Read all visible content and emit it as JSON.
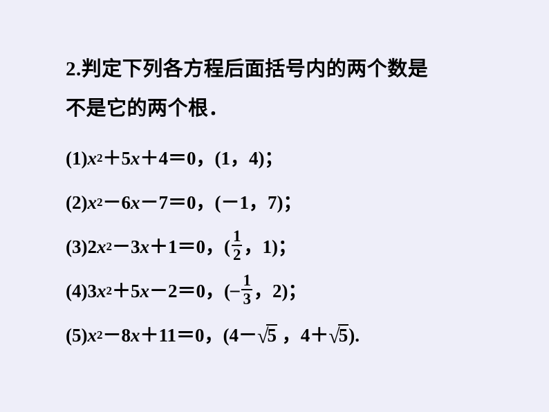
{
  "background_color": "#eeeef9",
  "text_color": "#000000",
  "intro": {
    "number": "2.",
    "line1_cn": "判定下列各方程后面括号内的两个数是",
    "line2_cn": "不是它的两个根．"
  },
  "items": [
    {
      "label": "(1)",
      "coef_a": "",
      "term1": "x",
      "exp1": "2",
      "op1": "＋",
      "coef_b": "5",
      "term2": "x",
      "op2": "＋",
      "coef_c": "4",
      "eq": "＝0",
      "roots_prefix": "(1",
      "roots_sep": "，",
      "roots_suffix": "4)",
      "semi": "；",
      "has_frac": false,
      "has_sqrt": false
    },
    {
      "label": "(2)",
      "coef_a": "",
      "term1": "x",
      "exp1": "2",
      "op1": "－",
      "coef_b": "6",
      "term2": "x",
      "op2": "－",
      "coef_c": "7",
      "eq": "＝0",
      "roots_prefix": "(－1",
      "roots_sep": "，",
      "roots_suffix": "7)",
      "semi": "；",
      "has_frac": false,
      "has_sqrt": false
    },
    {
      "label": "(3)",
      "coef_a": "2",
      "term1": "x",
      "exp1": "2",
      "op1": "－",
      "coef_b": "3",
      "term2": "x",
      "op2": "＋",
      "coef_c": "1",
      "eq": "＝0",
      "roots_prefix": "( ",
      "frac_neg": "",
      "frac_num": "1",
      "frac_den": "2",
      "roots_sep": "，",
      "roots_suffix": "1)",
      "semi": "；",
      "has_frac": true,
      "has_sqrt": false
    },
    {
      "label": "(4)",
      "coef_a": "3",
      "term1": "x",
      "exp1": "2",
      "op1": "＋",
      "coef_b": "5",
      "term2": "x",
      "op2": "－",
      "coef_c": "2",
      "eq": "＝0",
      "roots_prefix": "( ",
      "frac_neg": "–",
      "frac_num": "1",
      "frac_den": "3",
      "roots_sep": "，",
      "roots_suffix": "2)",
      "semi": "；",
      "has_frac": true,
      "has_sqrt": false
    },
    {
      "label": "(5)",
      "coef_a": "",
      "term1": "x",
      "exp1": "2",
      "op1": "－",
      "coef_b": "8",
      "term2": "x",
      "op2": "＋",
      "coef_c": "11",
      "eq": "＝0",
      "roots_prefix": "(4－",
      "sqrt_arg1": "5",
      "roots_sep": "，",
      "roots_mid": "4＋",
      "sqrt_arg2": "5",
      "roots_suffix": ")",
      "semi": ".",
      "has_frac": false,
      "has_sqrt": true
    }
  ]
}
